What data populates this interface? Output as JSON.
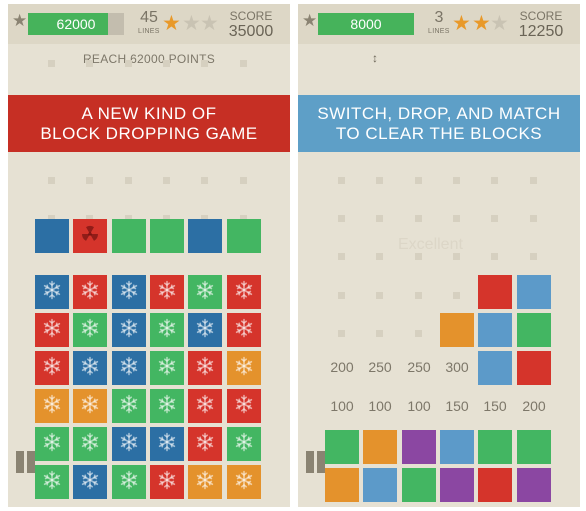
{
  "colors": {
    "blue": "#2c6fa4",
    "red": "#d5342b",
    "green": "#43b662",
    "orange": "#e4922c",
    "light_blue": "#6a9ecb",
    "purple": "#8b47a2",
    "banner_red": "#c62f24",
    "banner_blue": "#5e9fc7",
    "background": "#e6e1d3"
  },
  "left_screen": {
    "hud": {
      "star_icon": "star-icon",
      "progress_text": "62000",
      "progress_fraction": 0.83,
      "lines_count": "45",
      "lines_label": "LINES",
      "stars": [
        "on",
        "off",
        "off"
      ],
      "score_label": "SCORE",
      "score_value": "35000"
    },
    "goal_text": "REACH 62000 POINTS",
    "banner": {
      "line1": "A NEW KIND OF",
      "line2": "BLOCK DROPPING GAME"
    },
    "falling_row": [
      "blue",
      "red-radioactive",
      "green",
      "green",
      "blue",
      "green"
    ],
    "grid": [
      [
        "blue",
        "red",
        "blue",
        "red",
        "green",
        "red"
      ],
      [
        "red",
        "green",
        "blue",
        "green",
        "blue",
        "red"
      ],
      [
        "red",
        "blue",
        "blue",
        "green",
        "red",
        "orange"
      ],
      [
        "orange",
        "orange",
        "green",
        "green",
        "red",
        "red"
      ],
      [
        "green",
        "green",
        "blue",
        "blue",
        "red",
        "green"
      ],
      [
        "green",
        "blue",
        "green",
        "red",
        "orange",
        "orange"
      ]
    ],
    "pause_icon": "pause-icon"
  },
  "right_screen": {
    "hud": {
      "star_icon": "star-icon",
      "progress_text": "8000",
      "progress_fraction": 1.0,
      "lines_count": "3",
      "lines_label": "LINES",
      "stars": [
        "on",
        "on",
        "off"
      ],
      "score_label": "SCORE",
      "score_value": "12250"
    },
    "swap_hint_icon": "swap-arrows-icon",
    "banner": {
      "line1": "SWITCH, DROP, AND MATCH",
      "line2": "TO CLEAR THE BLOCKS"
    },
    "faded_text": "Excellent",
    "stack": [
      [
        "",
        "",
        "",
        "",
        "red",
        "light_blue"
      ],
      [
        "",
        "",
        "",
        "orange",
        "light_blue",
        "green"
      ],
      [
        "",
        "",
        "",
        "",
        "light_blue",
        "red"
      ]
    ],
    "points_row_1": [
      "200",
      "250",
      "250",
      "300",
      "",
      ""
    ],
    "points_row_2": [
      "100",
      "100",
      "100",
      "150",
      "150",
      "200"
    ],
    "tray": [
      [
        "green",
        "orange",
        "purple",
        "light_blue",
        "green",
        "green"
      ],
      [
        "orange",
        "light_blue",
        "green",
        "purple",
        "red",
        "purple"
      ]
    ],
    "pause_icon": "pause-icon"
  }
}
